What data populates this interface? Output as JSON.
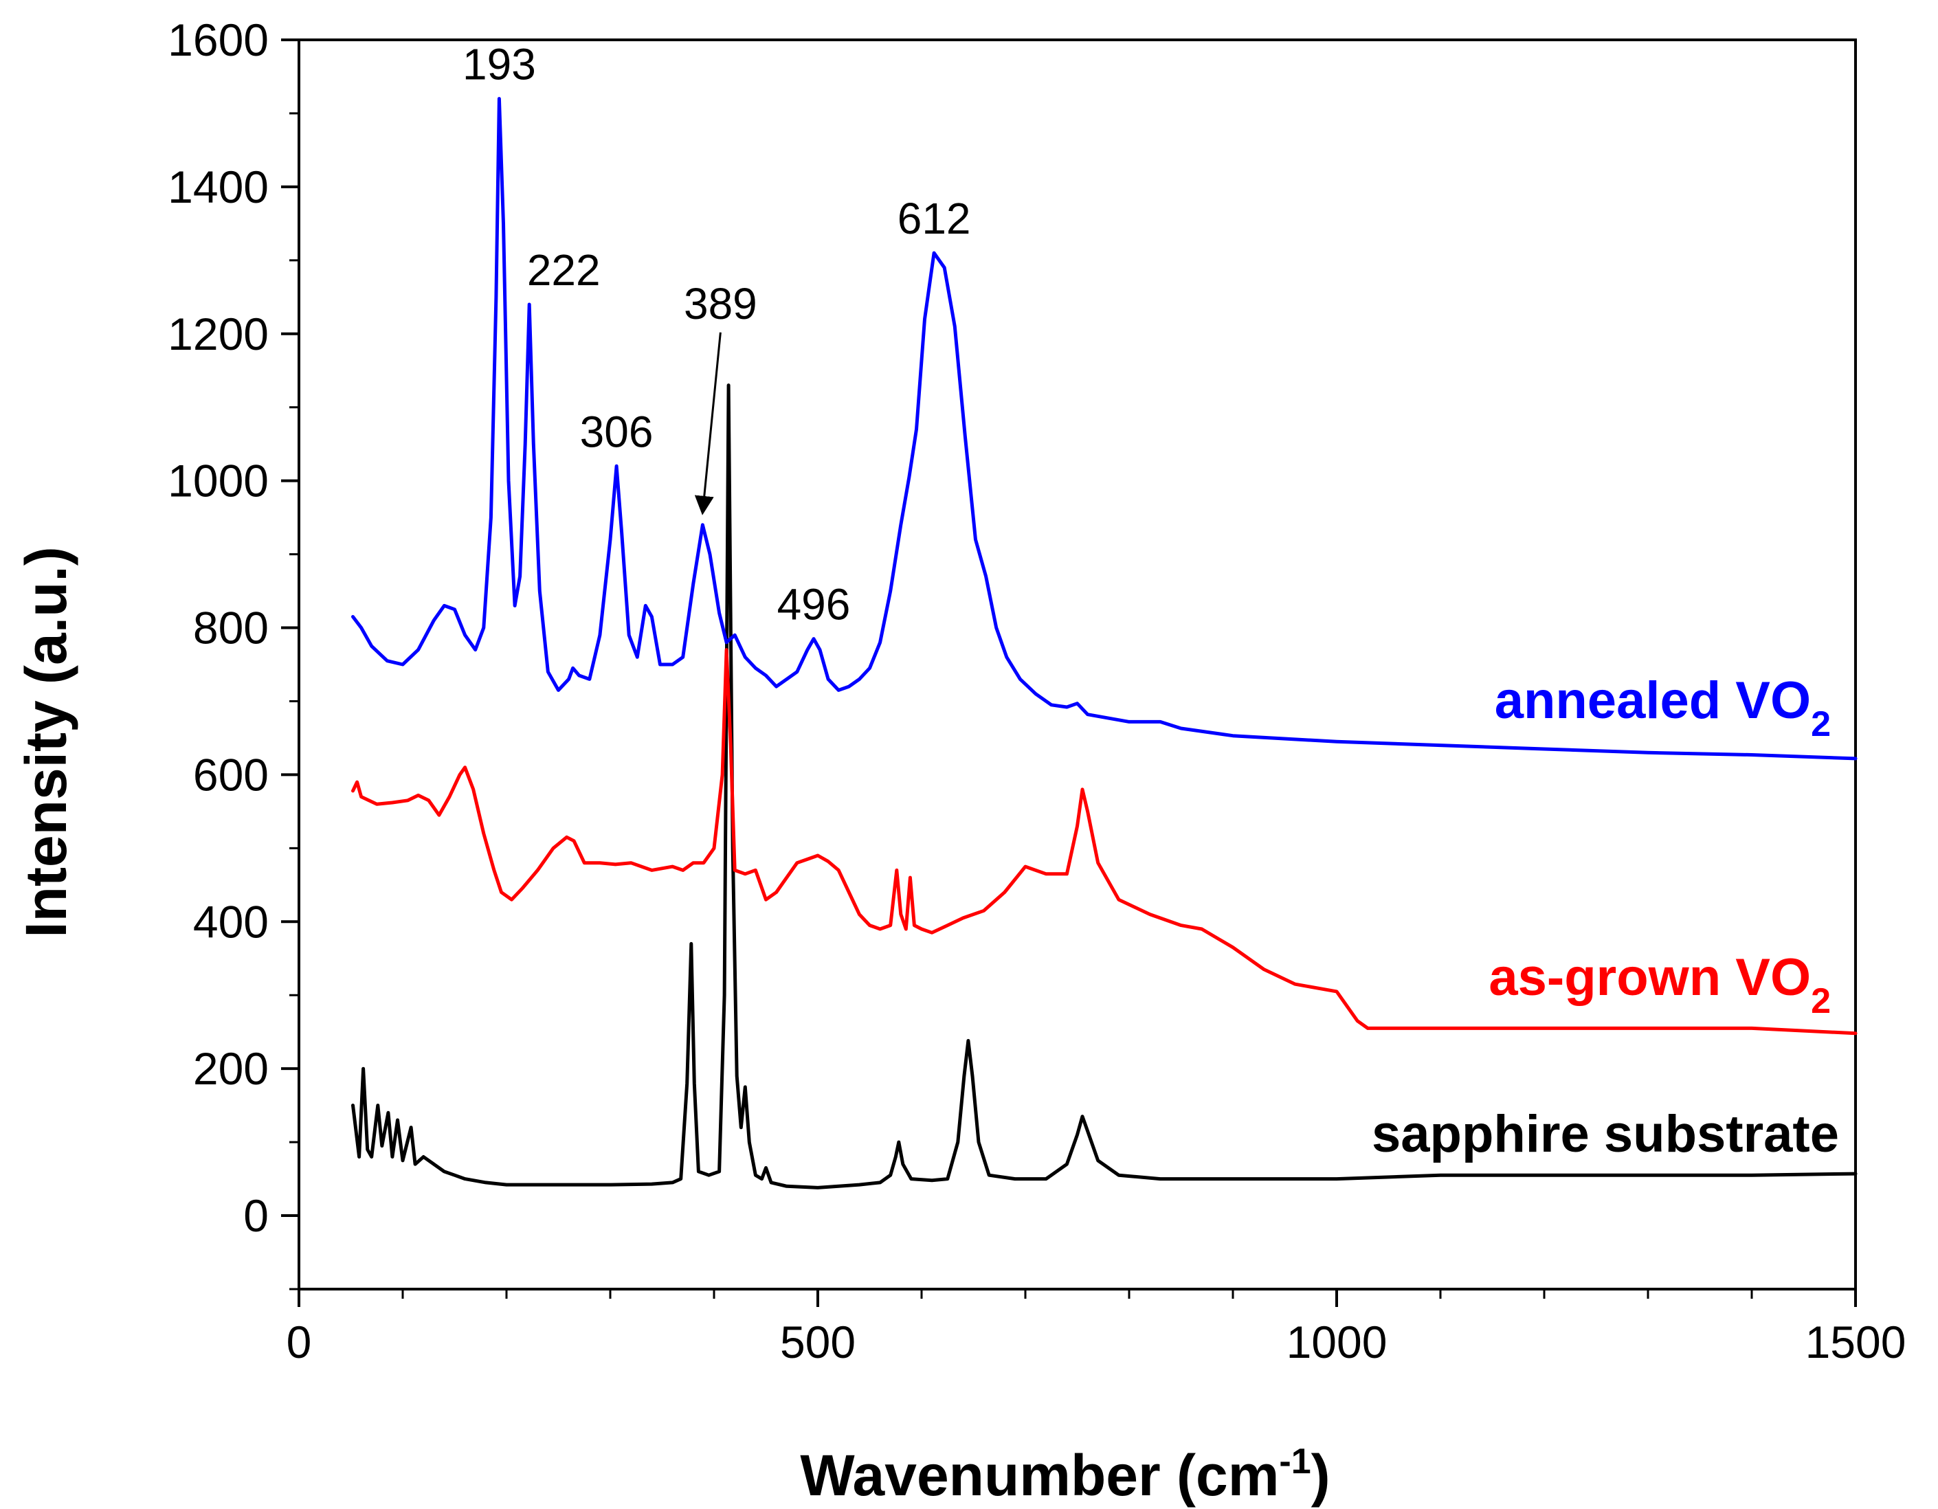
{
  "chart_data": {
    "type": "line",
    "title": "",
    "xlabel": "Wavenumber (cm",
    "xlabel_sup": "-1",
    "xlabel_end": ")",
    "ylabel": "Intensity (a.u.)",
    "xlim": [
      0,
      1500
    ],
    "ylim": [
      -100,
      1600
    ],
    "xticks": [
      0,
      500,
      1000,
      1500
    ],
    "xtick_labels": [
      "0",
      "500",
      "1000",
      "1500"
    ],
    "yticks": [
      0,
      200,
      400,
      600,
      800,
      1000,
      1200,
      1400,
      1600
    ],
    "ytick_labels": [
      "0",
      "200",
      "400",
      "600",
      "800",
      "1000",
      "1200",
      "1400",
      "1600"
    ],
    "series": [
      {
        "name": "annealed VO2",
        "label_main": "annealed VO",
        "label_sub": "2",
        "color": "#0000ff",
        "points": [
          [
            52,
            815
          ],
          [
            60,
            800
          ],
          [
            70,
            775
          ],
          [
            85,
            755
          ],
          [
            100,
            750
          ],
          [
            115,
            770
          ],
          [
            130,
            810
          ],
          [
            140,
            830
          ],
          [
            150,
            825
          ],
          [
            160,
            790
          ],
          [
            170,
            770
          ],
          [
            178,
            800
          ],
          [
            185,
            950
          ],
          [
            190,
            1250
          ],
          [
            193,
            1520
          ],
          [
            197,
            1350
          ],
          [
            202,
            1000
          ],
          [
            208,
            830
          ],
          [
            213,
            870
          ],
          [
            218,
            1050
          ],
          [
            222,
            1240
          ],
          [
            226,
            1050
          ],
          [
            232,
            850
          ],
          [
            240,
            740
          ],
          [
            250,
            715
          ],
          [
            260,
            730
          ],
          [
            264,
            745
          ],
          [
            270,
            735
          ],
          [
            280,
            730
          ],
          [
            290,
            790
          ],
          [
            300,
            920
          ],
          [
            306,
            1020
          ],
          [
            311,
            930
          ],
          [
            318,
            790
          ],
          [
            326,
            760
          ],
          [
            334,
            830
          ],
          [
            340,
            815
          ],
          [
            348,
            750
          ],
          [
            360,
            750
          ],
          [
            370,
            760
          ],
          [
            380,
            860
          ],
          [
            389,
            940
          ],
          [
            396,
            900
          ],
          [
            405,
            820
          ],
          [
            412,
            780
          ],
          [
            420,
            790
          ],
          [
            430,
            760
          ],
          [
            440,
            745
          ],
          [
            450,
            735
          ],
          [
            460,
            720
          ],
          [
            470,
            730
          ],
          [
            480,
            740
          ],
          [
            490,
            770
          ],
          [
            496,
            785
          ],
          [
            502,
            770
          ],
          [
            510,
            730
          ],
          [
            520,
            715
          ],
          [
            530,
            720
          ],
          [
            540,
            730
          ],
          [
            550,
            745
          ],
          [
            560,
            780
          ],
          [
            570,
            850
          ],
          [
            580,
            940
          ],
          [
            588,
            1005
          ],
          [
            595,
            1070
          ],
          [
            603,
            1220
          ],
          [
            612,
            1310
          ],
          [
            622,
            1290
          ],
          [
            632,
            1210
          ],
          [
            642,
            1060
          ],
          [
            652,
            920
          ],
          [
            662,
            870
          ],
          [
            672,
            800
          ],
          [
            682,
            760
          ],
          [
            695,
            730
          ],
          [
            710,
            710
          ],
          [
            725,
            695
          ],
          [
            740,
            692
          ],
          [
            750,
            697
          ],
          [
            760,
            682
          ],
          [
            780,
            677
          ],
          [
            800,
            672
          ],
          [
            830,
            672
          ],
          [
            850,
            663
          ],
          [
            900,
            653
          ],
          [
            1000,
            645
          ],
          [
            1100,
            640
          ],
          [
            1200,
            635
          ],
          [
            1300,
            630
          ],
          [
            1400,
            627
          ],
          [
            1500,
            622
          ]
        ]
      },
      {
        "name": "as-grown VO2",
        "label_main": "as-grown VO",
        "label_sub": "2",
        "color": "#ff0000",
        "points": [
          [
            52,
            578
          ],
          [
            56,
            590
          ],
          [
            60,
            570
          ],
          [
            75,
            560
          ],
          [
            90,
            562
          ],
          [
            105,
            565
          ],
          [
            115,
            572
          ],
          [
            125,
            565
          ],
          [
            135,
            545
          ],
          [
            145,
            570
          ],
          [
            155,
            600
          ],
          [
            160,
            610
          ],
          [
            168,
            580
          ],
          [
            178,
            520
          ],
          [
            188,
            470
          ],
          [
            195,
            440
          ],
          [
            205,
            430
          ],
          [
            215,
            445
          ],
          [
            230,
            470
          ],
          [
            245,
            500
          ],
          [
            258,
            515
          ],
          [
            265,
            510
          ],
          [
            275,
            480
          ],
          [
            290,
            480
          ],
          [
            305,
            478
          ],
          [
            320,
            480
          ],
          [
            340,
            470
          ],
          [
            360,
            475
          ],
          [
            370,
            470
          ],
          [
            380,
            480
          ],
          [
            390,
            480
          ],
          [
            400,
            500
          ],
          [
            408,
            600
          ],
          [
            412,
            770
          ],
          [
            416,
            640
          ],
          [
            420,
            470
          ],
          [
            430,
            465
          ],
          [
            440,
            470
          ],
          [
            450,
            430
          ],
          [
            460,
            440
          ],
          [
            470,
            460
          ],
          [
            480,
            480
          ],
          [
            490,
            485
          ],
          [
            500,
            490
          ],
          [
            510,
            482
          ],
          [
            520,
            470
          ],
          [
            530,
            440
          ],
          [
            540,
            410
          ],
          [
            550,
            395
          ],
          [
            560,
            390
          ],
          [
            570,
            395
          ],
          [
            576,
            470
          ],
          [
            580,
            410
          ],
          [
            585,
            390
          ],
          [
            589,
            460
          ],
          [
            593,
            395
          ],
          [
            600,
            390
          ],
          [
            610,
            385
          ],
          [
            625,
            395
          ],
          [
            640,
            405
          ],
          [
            660,
            415
          ],
          [
            680,
            440
          ],
          [
            700,
            475
          ],
          [
            720,
            465
          ],
          [
            740,
            465
          ],
          [
            750,
            530
          ],
          [
            755,
            580
          ],
          [
            760,
            550
          ],
          [
            770,
            480
          ],
          [
            790,
            430
          ],
          [
            820,
            410
          ],
          [
            850,
            395
          ],
          [
            870,
            390
          ],
          [
            900,
            365
          ],
          [
            930,
            335
          ],
          [
            960,
            315
          ],
          [
            1000,
            305
          ],
          [
            1020,
            265
          ],
          [
            1030,
            255
          ],
          [
            1100,
            255
          ],
          [
            1200,
            255
          ],
          [
            1300,
            255
          ],
          [
            1400,
            255
          ],
          [
            1500,
            248
          ]
        ]
      },
      {
        "name": "sapphire substrate",
        "label_main": "sapphire substrate",
        "label_sub": "",
        "color": "#000000",
        "points": [
          [
            52,
            150
          ],
          [
            58,
            80
          ],
          [
            62,
            200
          ],
          [
            66,
            90
          ],
          [
            70,
            80
          ],
          [
            76,
            150
          ],
          [
            80,
            95
          ],
          [
            86,
            140
          ],
          [
            90,
            80
          ],
          [
            95,
            130
          ],
          [
            100,
            75
          ],
          [
            108,
            120
          ],
          [
            112,
            70
          ],
          [
            120,
            80
          ],
          [
            130,
            70
          ],
          [
            140,
            60
          ],
          [
            150,
            55
          ],
          [
            160,
            50
          ],
          [
            180,
            45
          ],
          [
            200,
            42
          ],
          [
            250,
            42
          ],
          [
            300,
            42
          ],
          [
            340,
            43
          ],
          [
            360,
            45
          ],
          [
            368,
            50
          ],
          [
            374,
            180
          ],
          [
            378,
            370
          ],
          [
            381,
            180
          ],
          [
            385,
            60
          ],
          [
            395,
            55
          ],
          [
            405,
            60
          ],
          [
            410,
            300
          ],
          [
            414,
            1130
          ],
          [
            418,
            500
          ],
          [
            422,
            190
          ],
          [
            426,
            120
          ],
          [
            430,
            175
          ],
          [
            434,
            100
          ],
          [
            440,
            55
          ],
          [
            446,
            50
          ],
          [
            450,
            65
          ],
          [
            455,
            45
          ],
          [
            470,
            40
          ],
          [
            500,
            38
          ],
          [
            540,
            42
          ],
          [
            560,
            45
          ],
          [
            570,
            55
          ],
          [
            575,
            80
          ],
          [
            578,
            100
          ],
          [
            582,
            70
          ],
          [
            590,
            50
          ],
          [
            610,
            48
          ],
          [
            625,
            50
          ],
          [
            635,
            100
          ],
          [
            641,
            190
          ],
          [
            645,
            238
          ],
          [
            649,
            190
          ],
          [
            655,
            100
          ],
          [
            665,
            55
          ],
          [
            690,
            50
          ],
          [
            720,
            50
          ],
          [
            740,
            70
          ],
          [
            750,
            110
          ],
          [
            755,
            135
          ],
          [
            760,
            115
          ],
          [
            770,
            75
          ],
          [
            790,
            55
          ],
          [
            830,
            50
          ],
          [
            900,
            50
          ],
          [
            1000,
            50
          ],
          [
            1100,
            55
          ],
          [
            1200,
            55
          ],
          [
            1300,
            55
          ],
          [
            1400,
            55
          ],
          [
            1500,
            57
          ]
        ]
      }
    ],
    "annotations": [
      {
        "text": "193",
        "x": 193,
        "y": 1520
      },
      {
        "text": "222",
        "x": 222,
        "y": 1240
      },
      {
        "text": "306",
        "x": 306,
        "y": 1020
      },
      {
        "text": "389",
        "x": 389,
        "y": 940
      },
      {
        "text": "496",
        "x": 496,
        "y": 785
      },
      {
        "text": "612",
        "x": 612,
        "y": 1310
      }
    ]
  }
}
